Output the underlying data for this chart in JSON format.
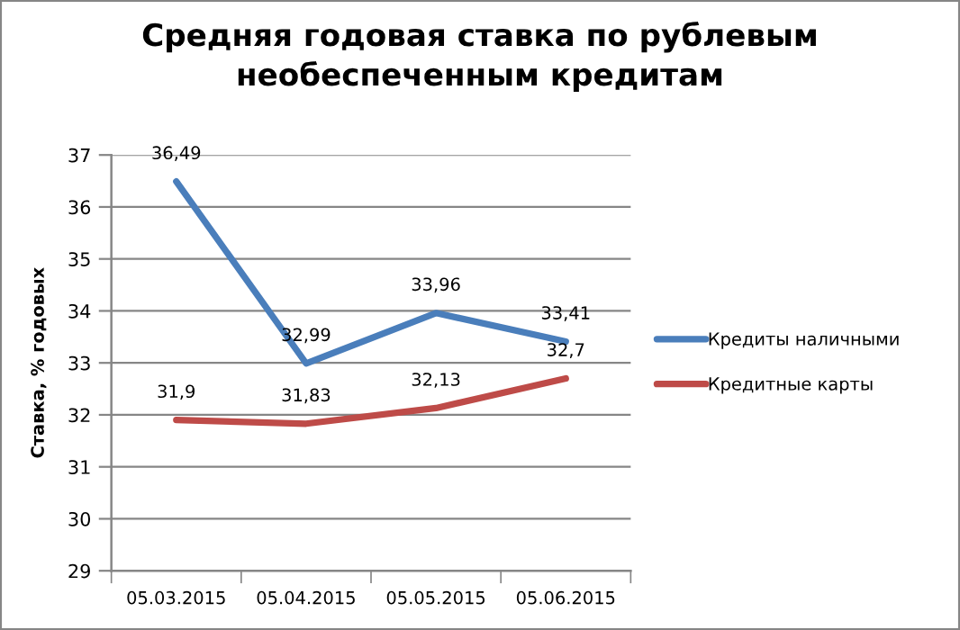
{
  "chart_data": {
    "type": "line",
    "title": "Средняя годовая ставка по рублевым\nнеобеспеченным кредитам",
    "ylabel": "Ставка, % годовых",
    "categories": [
      "05.03.2015",
      "05.04.2015",
      "05.05.2015",
      "05.06.2015"
    ],
    "series": [
      {
        "name": "Кредиты наличными",
        "color": "#4a7ebb",
        "values": [
          36.49,
          32.99,
          33.96,
          33.41
        ],
        "value_labels": [
          "36,49",
          "32,99",
          "33,96",
          "33,41"
        ]
      },
      {
        "name": "Кредитные карты",
        "color": "#be4b48",
        "values": [
          31.9,
          31.83,
          32.13,
          32.7
        ],
        "value_labels": [
          "31,9",
          "31,83",
          "32,13",
          "32,7"
        ]
      }
    ],
    "ylim": [
      29,
      37
    ],
    "yticks": [
      29,
      30,
      31,
      32,
      33,
      34,
      35,
      36,
      37
    ],
    "grid": "y",
    "legend": "right"
  }
}
